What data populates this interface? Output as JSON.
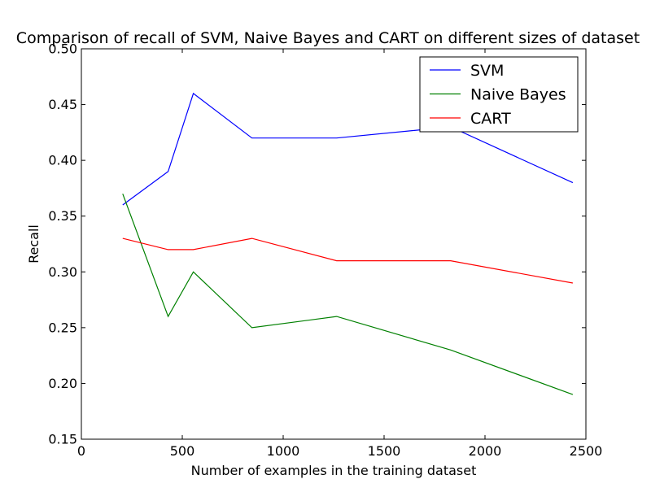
{
  "chart_data": {
    "type": "line",
    "title": "Comparison of recall of SVM, Naive Bayes and CART on different sizes of dataset",
    "xlabel": "Number of examples in the training dataset",
    "ylabel": "Recall",
    "xlim": [
      0,
      2500
    ],
    "ylim": [
      0.15,
      0.5
    ],
    "xticks": [
      0,
      500,
      1000,
      1500,
      2000,
      2500
    ],
    "xtick_labels": [
      "0",
      "500",
      "1000",
      "1500",
      "2000",
      "2500"
    ],
    "yticks": [
      0.15,
      0.2,
      0.25,
      0.3,
      0.35,
      0.4,
      0.45,
      0.5
    ],
    "ytick_labels": [
      "0.15",
      "0.20",
      "0.25",
      "0.30",
      "0.35",
      "0.40",
      "0.45",
      "0.50"
    ],
    "grid": false,
    "legend_position": "top-right",
    "x": [
      205,
      430,
      555,
      845,
      1265,
      1830,
      2435
    ],
    "series": [
      {
        "name": "SVM",
        "color": "#0000ff",
        "values": [
          0.36,
          0.39,
          0.46,
          0.42,
          0.42,
          0.43,
          0.38
        ]
      },
      {
        "name": "Naive Bayes",
        "color": "#008000",
        "values": [
          0.37,
          0.26,
          0.3,
          0.25,
          0.26,
          0.23,
          0.19
        ]
      },
      {
        "name": "CART",
        "color": "#ff0000",
        "values": [
          0.33,
          0.32,
          0.32,
          0.33,
          0.31,
          0.31,
          0.29
        ]
      }
    ]
  }
}
